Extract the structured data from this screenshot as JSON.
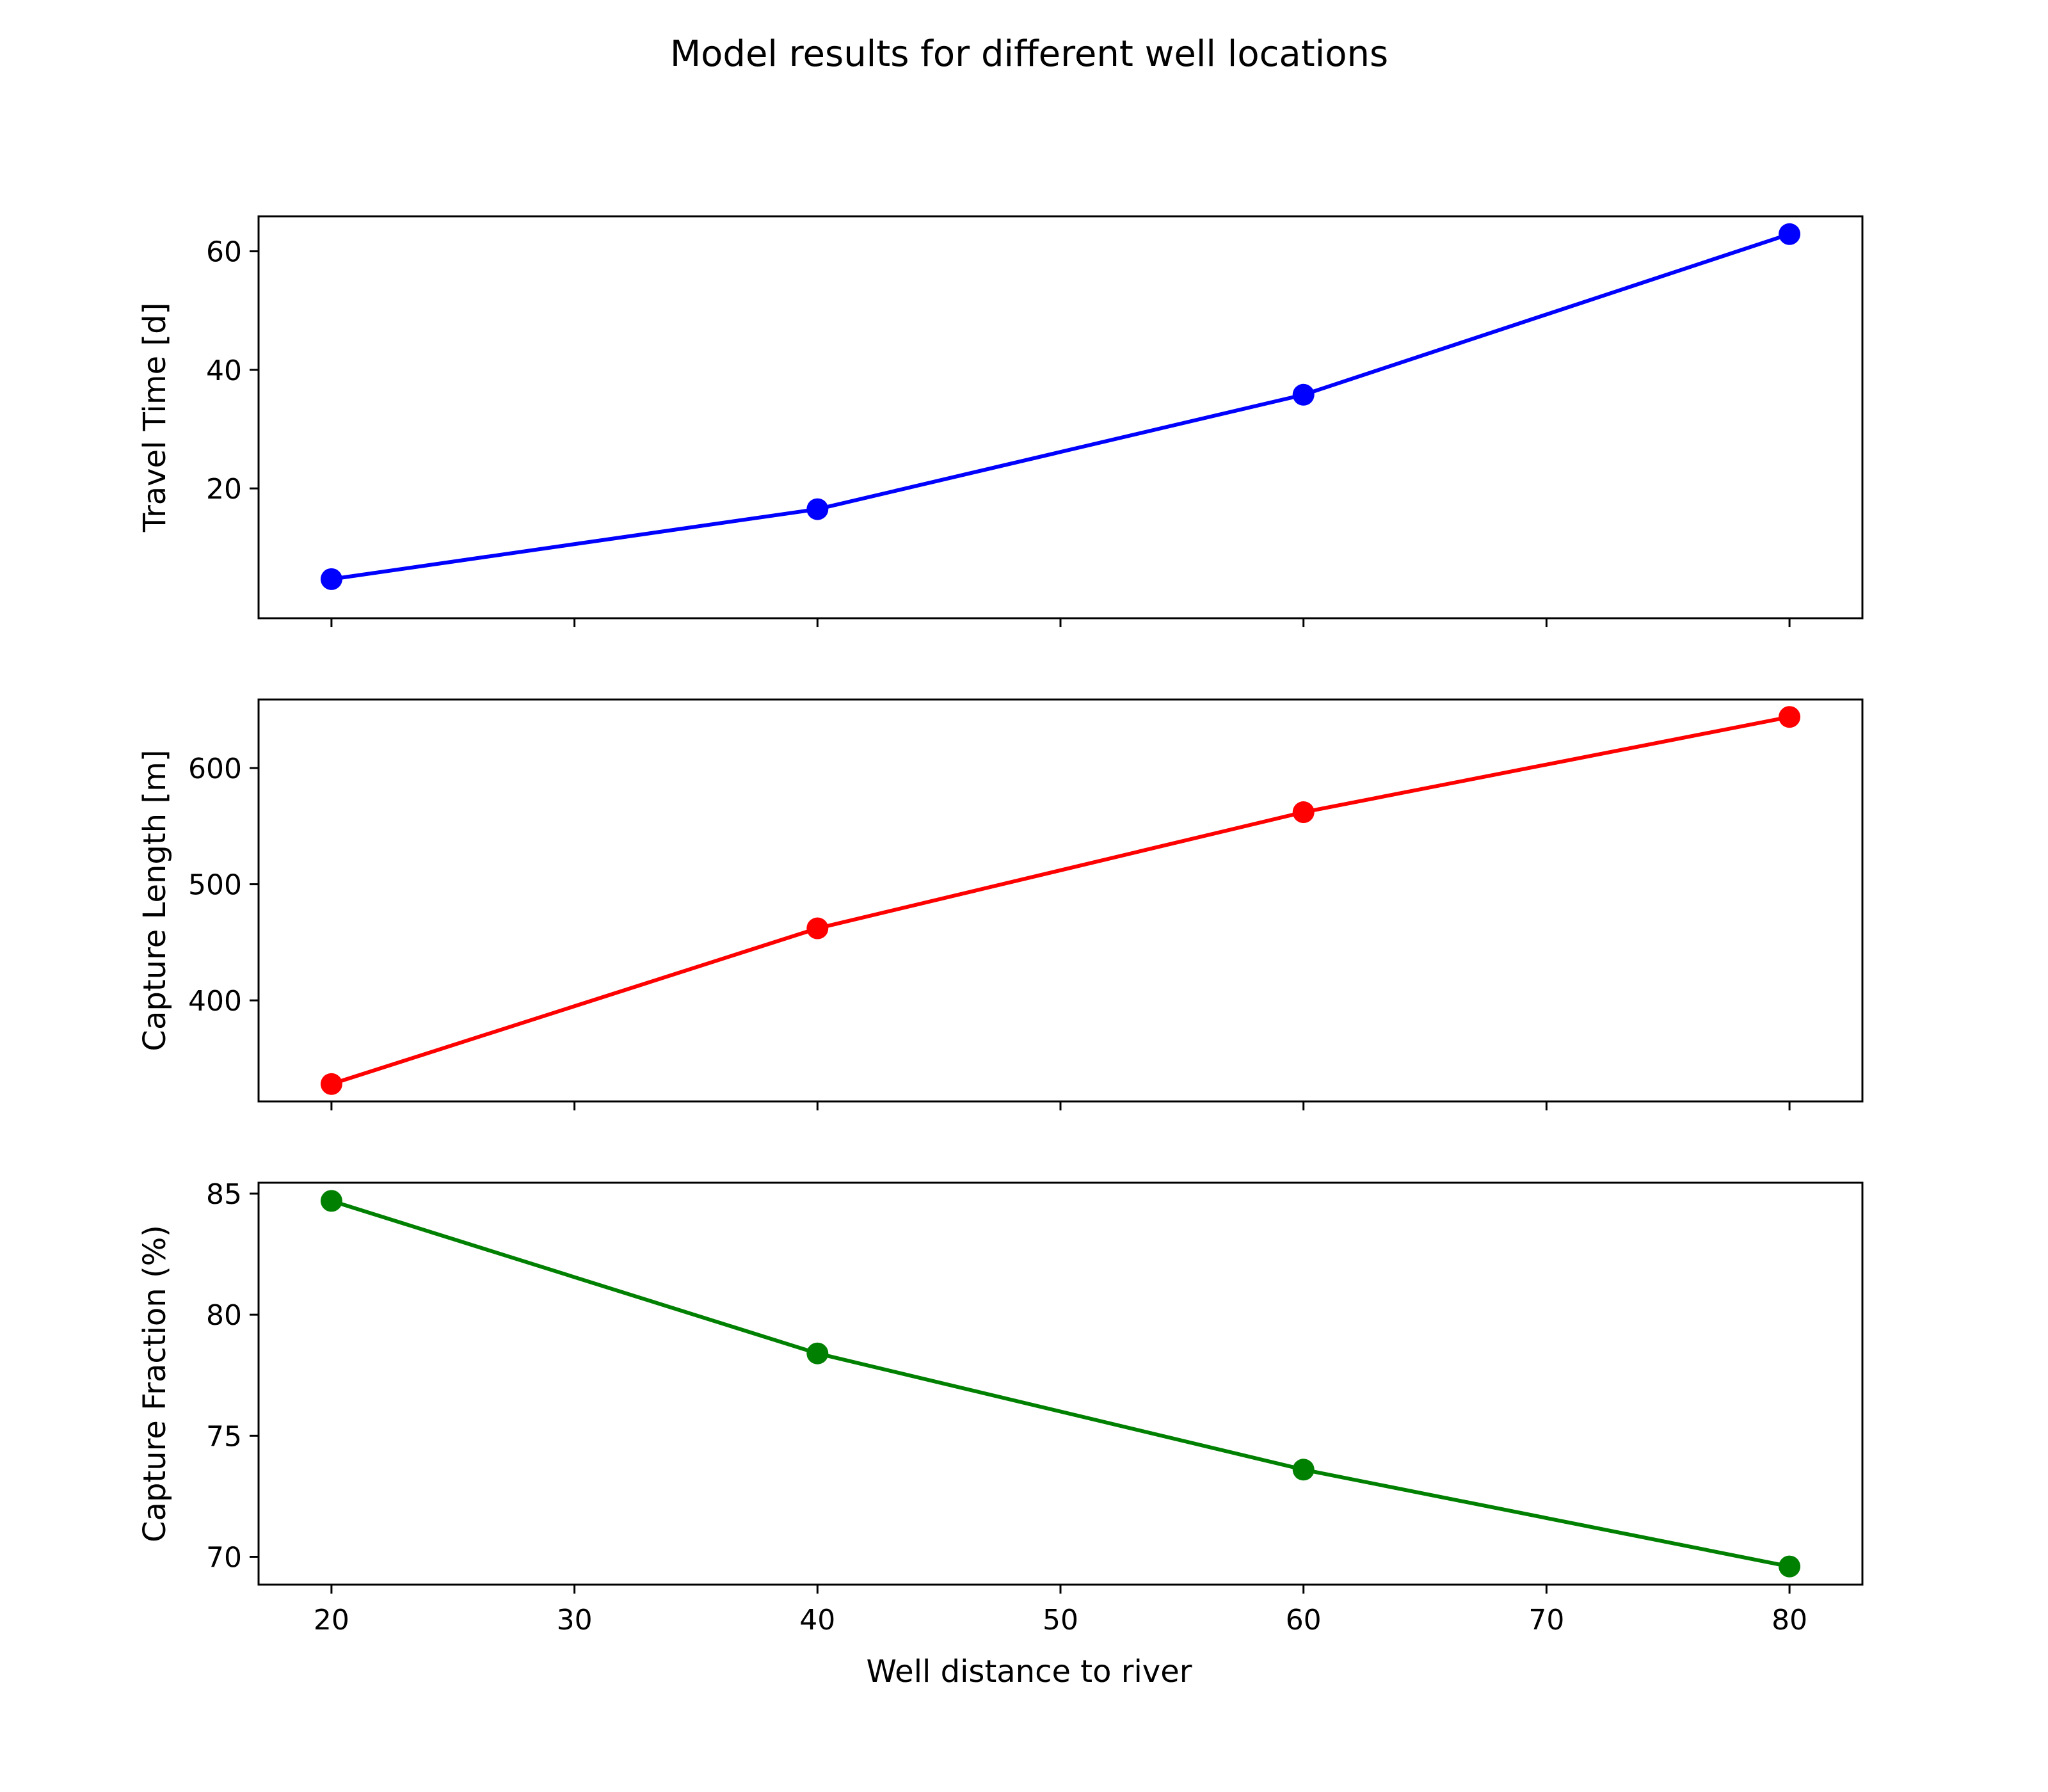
{
  "title": "Model results for different well locations",
  "xlabel": "Well distance to river",
  "chart_data": [
    {
      "type": "line",
      "x": [
        20,
        40,
        60,
        80
      ],
      "series": [
        {
          "values": [
            4.7,
            16.5,
            35.8,
            62.9
          ],
          "color": "#0000ff"
        }
      ],
      "ylabel": "Travel Time [d]",
      "xlim": [
        17,
        83
      ],
      "ylim": [
        -1.9,
        65.9
      ],
      "yticks": [
        20,
        40,
        60
      ],
      "xticks_labeled": false,
      "grid": false
    },
    {
      "type": "line",
      "x": [
        20,
        40,
        60,
        80
      ],
      "series": [
        {
          "values": [
            328,
            462,
            562,
            644
          ],
          "color": "#ff0000"
        }
      ],
      "ylabel": "Capture Length [m]",
      "xlim": [
        17,
        83
      ],
      "ylim": [
        313,
        659
      ],
      "yticks": [
        400,
        500,
        600
      ],
      "xticks_labeled": false,
      "grid": false
    },
    {
      "type": "line",
      "x": [
        20,
        40,
        60,
        80
      ],
      "series": [
        {
          "values": [
            84.7,
            78.4,
            73.6,
            69.6
          ],
          "color": "#008000"
        }
      ],
      "ylabel": "Capture Fraction (%)",
      "xlim": [
        17,
        83
      ],
      "ylim": [
        68.85,
        85.45
      ],
      "yticks": [
        70,
        75,
        80,
        85
      ],
      "xticks": [
        20,
        30,
        40,
        50,
        60,
        70,
        80
      ],
      "xticks_labeled": true,
      "grid": false
    }
  ]
}
